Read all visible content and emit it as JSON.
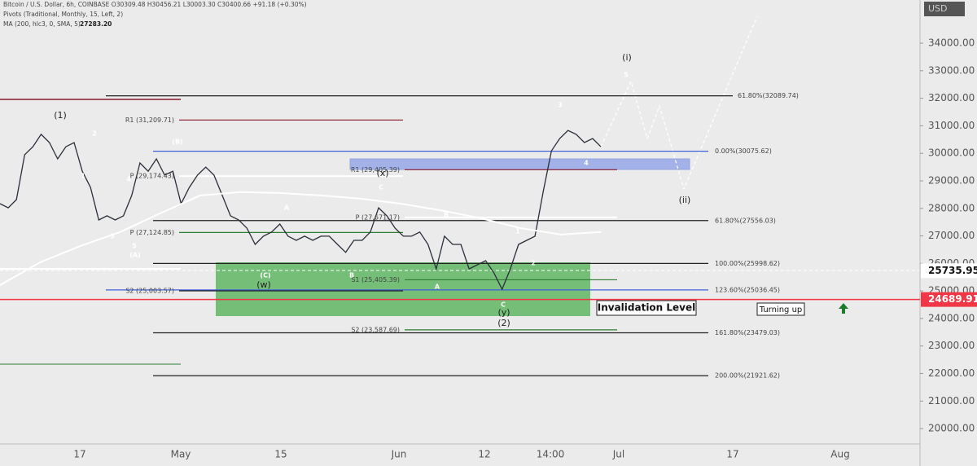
{
  "header": {
    "symbol": "Bitcoin / U.S. Dollar, 6h, COINBASE  O30309.48 H30456.21 L30003.30 C30400.66 +91.18 (+0.30%)",
    "pivots": "Pivots (Traditional, Monthly, 15, Left, 2)",
    "ma": "MA (200, hlc3, 0, SMA, 5)",
    "ma_value": "27283.20"
  },
  "chart_data": {
    "type": "line",
    "currency": "USD",
    "ylim": [
      19440,
      35570
    ],
    "yticks": [
      {
        "value": 20000,
        "label": "20000.00"
      },
      {
        "value": 21000,
        "label": "21000.00"
      },
      {
        "value": 22000,
        "label": "22000.00"
      },
      {
        "value": 23000,
        "label": "23000.00"
      },
      {
        "value": 24000,
        "label": "24000.00"
      },
      {
        "value": 25000,
        "label": "25000.00"
      },
      {
        "value": 26000,
        "label": "26000.00"
      },
      {
        "value": 27000,
        "label": "27000.00"
      },
      {
        "value": 28000,
        "label": "28000.00"
      },
      {
        "value": 29000,
        "label": "29000.00"
      },
      {
        "value": 30000,
        "label": "30000.00"
      },
      {
        "value": 31000,
        "label": "31000.00"
      },
      {
        "value": 32000,
        "label": "32000.00"
      },
      {
        "value": 33000,
        "label": "33000.00"
      },
      {
        "value": 34000,
        "label": "34000.00"
      }
    ],
    "x_labels": [
      "17",
      "May",
      "15",
      "Jun",
      "12",
      "14:00",
      "Jul",
      "17",
      "Aug"
    ],
    "series": [
      {
        "color": "#2a2e39",
        "values": [
          28170,
          28020,
          28320,
          29950,
          30240,
          30690,
          30390,
          29800,
          30240,
          30390,
          29350,
          28760,
          27580,
          27730,
          27580,
          27730,
          28470,
          29650,
          29350,
          29800,
          29210,
          29350,
          28170,
          28760,
          29210,
          29500,
          29210,
          28470,
          27730,
          27580,
          27280,
          26690,
          26990,
          27140,
          27430,
          26990,
          26840,
          26990,
          26840,
          26990,
          26990,
          26690,
          26400,
          26840,
          26840,
          27140,
          28020,
          27730,
          27280,
          26990,
          26990,
          27140,
          26690,
          25800,
          26990,
          26690,
          26690,
          25800,
          25950,
          26100,
          25660,
          25060,
          25800,
          26690,
          26840,
          26990,
          28610,
          30090,
          30540,
          30830,
          30690,
          30390,
          30540,
          30240
        ]
      },
      {
        "color": "#ffffff",
        "values": [
          25210,
          26040,
          26630,
          27140,
          27820,
          28470,
          28590,
          28560,
          28470,
          28350,
          28170,
          27930,
          27640,
          27280,
          27050,
          27140
        ]
      }
    ],
    "levels": [
      {
        "label": "61.80%(32089.74)",
        "value": 32089.74,
        "color": "#222222"
      },
      {
        "label": "0.00%(30075.62)",
        "value": 30075.62,
        "color": "#3f5fd8"
      },
      {
        "label": "61.80%(27556.03)",
        "value": 27556.03,
        "color": "#222222"
      },
      {
        "label": "100.00%(25998.62)",
        "value": 25998.62,
        "color": "#222222"
      },
      {
        "label": "123.60%(25036.45)",
        "value": 25036.45,
        "color": "#3f5fd8"
      },
      {
        "label": "161.80%(23479.03)",
        "value": 23479.03,
        "color": "#222222"
      },
      {
        "label": "200.00%(21921.62)",
        "value": 21921.62,
        "color": "#222222"
      },
      {
        "label": "R1 (31,209.71)",
        "value": 31209.71,
        "color": "#8b1a2b"
      },
      {
        "label": "P (29,174.43)",
        "value": 29174.43,
        "color": "#ffffff"
      },
      {
        "label": "P (27,124.85)",
        "value": 27124.85,
        "color": "#2e7d32"
      },
      {
        "label": "S2 (25,003.57)",
        "value": 25003.57,
        "color": "#222222"
      },
      {
        "label": "R1 (29,405.39)",
        "value": 29405.39,
        "color": "#8b1a2b"
      },
      {
        "label": "P (27,671.17)",
        "value": 27671.17,
        "color": "#ffffff"
      },
      {
        "label": "S1 (25,405.39)",
        "value": 25405.39,
        "color": "#2e7d32"
      },
      {
        "label": "S2 (23,587.69)",
        "value": 23587.69,
        "color": "#2e7d32"
      }
    ],
    "price_tags": [
      {
        "value": 25735.95,
        "label": "25735.95",
        "color": "#ffffff"
      },
      {
        "value": 24689.91,
        "label": "24689.91",
        "color": "#f23645"
      }
    ],
    "waves": [
      "(1)",
      "1",
      "2",
      "3",
      "4",
      "5",
      "(A)",
      "(B)",
      "A",
      "(C)",
      "(w)",
      "B",
      "C",
      "(x)",
      "A",
      "B",
      "C",
      "(y)",
      "(2)",
      "1",
      "2",
      "3",
      "4",
      "5",
      "(i)",
      "(ii)"
    ],
    "notes": [
      "Invalidation Level",
      "Turning up"
    ]
  }
}
